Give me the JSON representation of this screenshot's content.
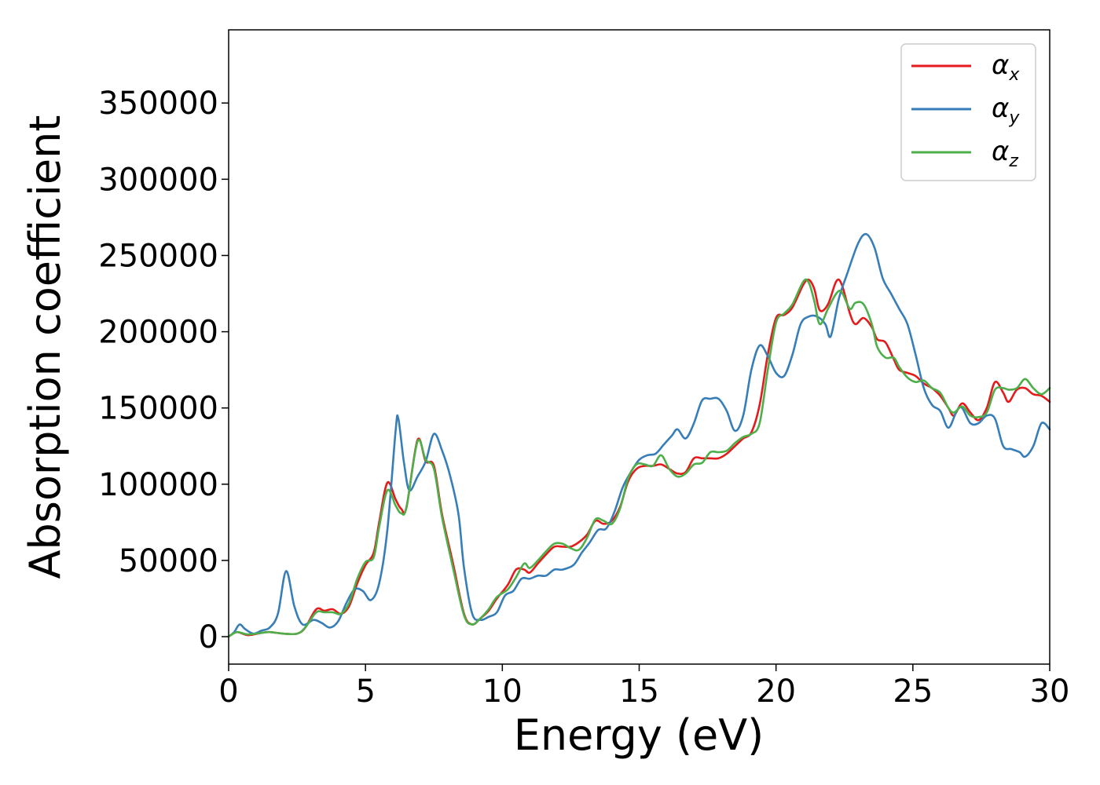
{
  "chart_data": {
    "type": "line",
    "xlabel": "Energy (eV)",
    "ylabel": "Absorption coefficient",
    "xlim": [
      0,
      30
    ],
    "ylim": [
      -18000,
      398000
    ],
    "xticks": [
      "0",
      "5",
      "10",
      "15",
      "20",
      "25",
      "30"
    ],
    "yticks": [
      "0",
      "50000",
      "100000",
      "150000",
      "200000",
      "250000",
      "300000",
      "350000"
    ],
    "grid": false,
    "legend_position": "top-right",
    "series": [
      {
        "name": "α",
        "subscript": "x",
        "color": "#e41a1c",
        "points": [
          [
            0,
            0
          ],
          [
            0.3,
            3000
          ],
          [
            0.7,
            1000
          ],
          [
            1.2,
            2500
          ],
          [
            1.5,
            3000
          ],
          [
            2,
            2000
          ],
          [
            2.5,
            2000
          ],
          [
            2.8,
            6000
          ],
          [
            3.2,
            18000
          ],
          [
            3.5,
            17000
          ],
          [
            3.8,
            18000
          ],
          [
            4.1,
            15000
          ],
          [
            4.4,
            20000
          ],
          [
            4.7,
            35000
          ],
          [
            5,
            47000
          ],
          [
            5.3,
            55000
          ],
          [
            5.5,
            75000
          ],
          [
            5.8,
            101000
          ],
          [
            6.1,
            90000
          ],
          [
            6.3,
            84000
          ],
          [
            6.5,
            85000
          ],
          [
            6.9,
            129000
          ],
          [
            7.2,
            115000
          ],
          [
            7.5,
            112000
          ],
          [
            7.8,
            80000
          ],
          [
            8.2,
            48000
          ],
          [
            8.6,
            15000
          ],
          [
            8.9,
            8000
          ],
          [
            9.2,
            12000
          ],
          [
            9.5,
            17000
          ],
          [
            9.8,
            25000
          ],
          [
            10.2,
            34000
          ],
          [
            10.5,
            44000
          ],
          [
            10.8,
            44000
          ],
          [
            11,
            42000
          ],
          [
            11.3,
            48000
          ],
          [
            11.6,
            54000
          ],
          [
            11.9,
            59000
          ],
          [
            12.2,
            59000
          ],
          [
            12.5,
            59000
          ],
          [
            12.8,
            62000
          ],
          [
            13.1,
            67000
          ],
          [
            13.4,
            76000
          ],
          [
            13.7,
            74000
          ],
          [
            14,
            76000
          ],
          [
            14.3,
            85000
          ],
          [
            14.6,
            102000
          ],
          [
            14.9,
            110000
          ],
          [
            15.2,
            112000
          ],
          [
            15.5,
            112000
          ],
          [
            15.8,
            113000
          ],
          [
            16.1,
            110000
          ],
          [
            16.4,
            107000
          ],
          [
            16.7,
            108000
          ],
          [
            17,
            117000
          ],
          [
            17.3,
            117000
          ],
          [
            17.6,
            117000
          ],
          [
            17.9,
            117000
          ],
          [
            18.2,
            120000
          ],
          [
            18.5,
            125000
          ],
          [
            18.8,
            130000
          ],
          [
            19.1,
            134000
          ],
          [
            19.4,
            152000
          ],
          [
            19.7,
            185000
          ],
          [
            20,
            209000
          ],
          [
            20.3,
            211000
          ],
          [
            20.6,
            216000
          ],
          [
            21,
            231000
          ],
          [
            21.2,
            234000
          ],
          [
            21.4,
            228000
          ],
          [
            21.6,
            214000
          ],
          [
            21.9,
            218000
          ],
          [
            22.2,
            233000
          ],
          [
            22.4,
            231000
          ],
          [
            22.7,
            212000
          ],
          [
            22.9,
            205000
          ],
          [
            23.2,
            209000
          ],
          [
            23.5,
            203000
          ],
          [
            23.7,
            195000
          ],
          [
            24,
            193000
          ],
          [
            24.3,
            182000
          ],
          [
            24.5,
            175000
          ],
          [
            24.8,
            173000
          ],
          [
            25.1,
            171000
          ],
          [
            25.4,
            166000
          ],
          [
            25.7,
            163000
          ],
          [
            26,
            158000
          ],
          [
            26.3,
            150000
          ],
          [
            26.5,
            145000
          ],
          [
            26.8,
            153000
          ],
          [
            27.1,
            147000
          ],
          [
            27.4,
            142000
          ],
          [
            27.7,
            150000
          ],
          [
            28,
            167000
          ],
          [
            28.3,
            160000
          ],
          [
            28.5,
            154000
          ],
          [
            28.8,
            162000
          ],
          [
            29.1,
            163000
          ],
          [
            29.4,
            159000
          ],
          [
            29.7,
            158000
          ],
          [
            30,
            154000
          ]
        ]
      },
      {
        "name": "α",
        "subscript": "y",
        "color": "#377eb8",
        "points": [
          [
            0,
            0
          ],
          [
            0.2,
            3000
          ],
          [
            0.4,
            8000
          ],
          [
            0.6,
            5000
          ],
          [
            0.9,
            2000
          ],
          [
            1.2,
            4000
          ],
          [
            1.5,
            6000
          ],
          [
            1.8,
            15000
          ],
          [
            2.1,
            43000
          ],
          [
            2.4,
            20000
          ],
          [
            2.7,
            8000
          ],
          [
            3.1,
            11000
          ],
          [
            3.4,
            9000
          ],
          [
            3.7,
            6000
          ],
          [
            4,
            10000
          ],
          [
            4.3,
            22000
          ],
          [
            4.6,
            31000
          ],
          [
            4.9,
            30000
          ],
          [
            5.2,
            24000
          ],
          [
            5.5,
            35000
          ],
          [
            5.8,
            70000
          ],
          [
            6.1,
            135000
          ],
          [
            6.2,
            143000
          ],
          [
            6.4,
            115000
          ],
          [
            6.6,
            96000
          ],
          [
            6.9,
            105000
          ],
          [
            7.2,
            115000
          ],
          [
            7.5,
            133000
          ],
          [
            7.8,
            122000
          ],
          [
            8.1,
            105000
          ],
          [
            8.4,
            80000
          ],
          [
            8.6,
            45000
          ],
          [
            8.9,
            15000
          ],
          [
            9.2,
            11000
          ],
          [
            9.5,
            13000
          ],
          [
            9.8,
            16000
          ],
          [
            10.1,
            27000
          ],
          [
            10.4,
            30000
          ],
          [
            10.7,
            38000
          ],
          [
            11,
            38000
          ],
          [
            11.3,
            40000
          ],
          [
            11.6,
            40000
          ],
          [
            11.9,
            44000
          ],
          [
            12.2,
            44000
          ],
          [
            12.6,
            47000
          ],
          [
            12.9,
            55000
          ],
          [
            13.2,
            62000
          ],
          [
            13.5,
            70000
          ],
          [
            13.8,
            71000
          ],
          [
            14.1,
            82000
          ],
          [
            14.4,
            98000
          ],
          [
            14.7,
            108000
          ],
          [
            15,
            116000
          ],
          [
            15.3,
            119000
          ],
          [
            15.6,
            120000
          ],
          [
            15.9,
            126000
          ],
          [
            16.2,
            132000
          ],
          [
            16.4,
            136000
          ],
          [
            16.7,
            130000
          ],
          [
            17,
            140000
          ],
          [
            17.3,
            155000
          ],
          [
            17.6,
            156000
          ],
          [
            17.9,
            156000
          ],
          [
            18.2,
            148000
          ],
          [
            18.5,
            135000
          ],
          [
            18.8,
            145000
          ],
          [
            19.1,
            175000
          ],
          [
            19.4,
            191000
          ],
          [
            19.7,
            184000
          ],
          [
            20,
            173000
          ],
          [
            20.3,
            171000
          ],
          [
            20.6,
            185000
          ],
          [
            20.9,
            205000
          ],
          [
            21.2,
            210000
          ],
          [
            21.5,
            210000
          ],
          [
            21.8,
            205000
          ],
          [
            22,
            197000
          ],
          [
            22.3,
            222000
          ],
          [
            22.6,
            238000
          ],
          [
            23,
            258000
          ],
          [
            23.3,
            264000
          ],
          [
            23.6,
            255000
          ],
          [
            23.9,
            235000
          ],
          [
            24.2,
            225000
          ],
          [
            24.5,
            215000
          ],
          [
            24.8,
            205000
          ],
          [
            25.1,
            185000
          ],
          [
            25.4,
            163000
          ],
          [
            25.7,
            152000
          ],
          [
            26,
            148000
          ],
          [
            26.3,
            137000
          ],
          [
            26.6,
            148000
          ],
          [
            26.8,
            150000
          ],
          [
            27.1,
            140000
          ],
          [
            27.4,
            140000
          ],
          [
            27.7,
            145000
          ],
          [
            28,
            143000
          ],
          [
            28.3,
            125000
          ],
          [
            28.6,
            123000
          ],
          [
            28.9,
            121000
          ],
          [
            29.1,
            118000
          ],
          [
            29.4,
            125000
          ],
          [
            29.7,
            140000
          ],
          [
            30,
            136000
          ]
        ]
      },
      {
        "name": "α",
        "subscript": "z",
        "color": "#4daf4a",
        "points": [
          [
            0,
            0
          ],
          [
            0.3,
            3000
          ],
          [
            0.7,
            1500
          ],
          [
            1.2,
            2500
          ],
          [
            1.5,
            3000
          ],
          [
            2,
            2000
          ],
          [
            2.5,
            2000
          ],
          [
            2.8,
            6000
          ],
          [
            3.2,
            16000
          ],
          [
            3.5,
            16000
          ],
          [
            3.8,
            16000
          ],
          [
            4.1,
            15000
          ],
          [
            4.4,
            22000
          ],
          [
            4.7,
            38000
          ],
          [
            5,
            49000
          ],
          [
            5.3,
            52000
          ],
          [
            5.5,
            72000
          ],
          [
            5.8,
            96000
          ],
          [
            6.1,
            86000
          ],
          [
            6.3,
            81000
          ],
          [
            6.5,
            85000
          ],
          [
            6.9,
            128000
          ],
          [
            7.2,
            116000
          ],
          [
            7.5,
            110000
          ],
          [
            7.8,
            78000
          ],
          [
            8.2,
            45000
          ],
          [
            8.6,
            14000
          ],
          [
            8.9,
            8000
          ],
          [
            9.2,
            12000
          ],
          [
            9.5,
            18000
          ],
          [
            9.8,
            26000
          ],
          [
            10.2,
            31000
          ],
          [
            10.5,
            39000
          ],
          [
            10.8,
            48000
          ],
          [
            11,
            45000
          ],
          [
            11.3,
            50000
          ],
          [
            11.6,
            56000
          ],
          [
            11.9,
            61000
          ],
          [
            12.2,
            61000
          ],
          [
            12.5,
            58000
          ],
          [
            12.8,
            57000
          ],
          [
            13.1,
            65000
          ],
          [
            13.4,
            77000
          ],
          [
            13.7,
            76000
          ],
          [
            14,
            74000
          ],
          [
            14.3,
            84000
          ],
          [
            14.6,
            104000
          ],
          [
            14.9,
            113000
          ],
          [
            15.2,
            113000
          ],
          [
            15.5,
            112000
          ],
          [
            15.8,
            119000
          ],
          [
            16.1,
            110000
          ],
          [
            16.4,
            105000
          ],
          [
            16.7,
            107000
          ],
          [
            17,
            113000
          ],
          [
            17.3,
            114000
          ],
          [
            17.6,
            121000
          ],
          [
            17.9,
            121000
          ],
          [
            18.2,
            122000
          ],
          [
            18.5,
            127000
          ],
          [
            18.8,
            131000
          ],
          [
            19.1,
            133000
          ],
          [
            19.4,
            140000
          ],
          [
            19.7,
            175000
          ],
          [
            20,
            206000
          ],
          [
            20.3,
            212000
          ],
          [
            20.6,
            218000
          ],
          [
            21,
            233000
          ],
          [
            21.2,
            232000
          ],
          [
            21.4,
            220000
          ],
          [
            21.6,
            205000
          ],
          [
            21.9,
            215000
          ],
          [
            22.2,
            225000
          ],
          [
            22.4,
            226000
          ],
          [
            22.7,
            215000
          ],
          [
            22.9,
            219000
          ],
          [
            23.2,
            218000
          ],
          [
            23.5,
            205000
          ],
          [
            23.7,
            190000
          ],
          [
            24,
            183000
          ],
          [
            24.3,
            183000
          ],
          [
            24.5,
            177000
          ],
          [
            24.8,
            170000
          ],
          [
            25.1,
            167000
          ],
          [
            25.4,
            168000
          ],
          [
            25.7,
            163000
          ],
          [
            26,
            160000
          ],
          [
            26.3,
            150000
          ],
          [
            26.5,
            147000
          ],
          [
            26.8,
            151000
          ],
          [
            27.1,
            145000
          ],
          [
            27.4,
            144000
          ],
          [
            27.7,
            147000
          ],
          [
            28,
            162000
          ],
          [
            28.3,
            163000
          ],
          [
            28.5,
            162000
          ],
          [
            28.8,
            163000
          ],
          [
            29.1,
            169000
          ],
          [
            29.4,
            163000
          ],
          [
            29.7,
            159000
          ],
          [
            30,
            163000
          ]
        ]
      }
    ]
  }
}
